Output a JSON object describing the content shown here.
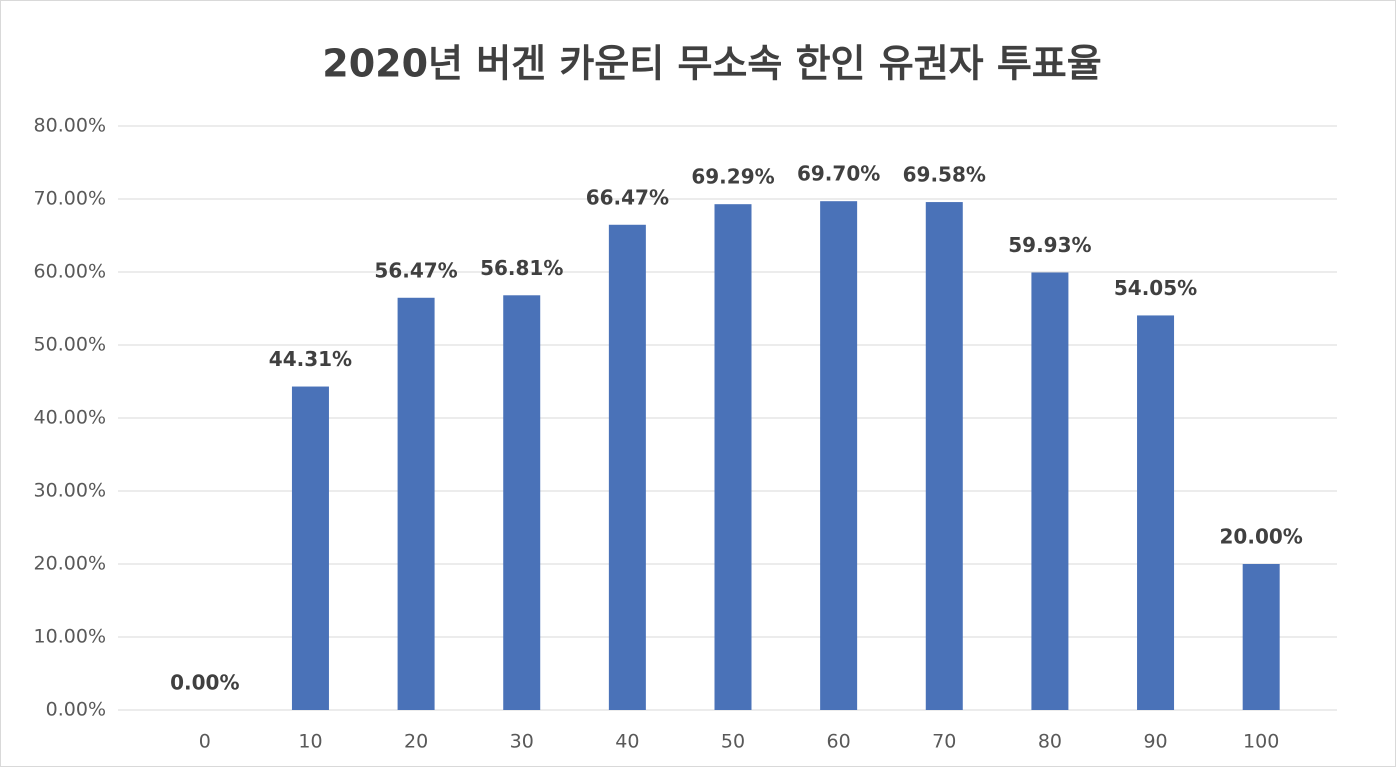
{
  "chart_data": {
    "type": "bar",
    "title": "2020년 버겐 카운티 무소속 한인 유권자 투표율",
    "categories": [
      "0",
      "10",
      "20",
      "30",
      "40",
      "50",
      "60",
      "70",
      "80",
      "90",
      "100"
    ],
    "values": [
      0,
      44.31,
      56.47,
      56.81,
      66.47,
      69.29,
      69.7,
      69.58,
      59.93,
      54.05,
      20.0
    ],
    "value_labels": [
      "0.00%",
      "44.31%",
      "56.47%",
      "56.81%",
      "66.47%",
      "69.29%",
      "69.70%",
      "69.58%",
      "59.93%",
      "54.05%",
      "20.00%"
    ],
    "color": "#4a72b8",
    "ylim": [
      0,
      80
    ],
    "yticks": [
      {
        "value": 0,
        "label": "0.00%"
      },
      {
        "value": 10,
        "label": "10.00%"
      },
      {
        "value": 20,
        "label": "20.00%"
      },
      {
        "value": 30,
        "label": "30.00%"
      },
      {
        "value": 40,
        "label": "40.00%"
      },
      {
        "value": 50,
        "label": "50.00%"
      },
      {
        "value": 60,
        "label": "60.00%"
      },
      {
        "value": 70,
        "label": "70.00%"
      },
      {
        "value": 80,
        "label": "80.00%"
      }
    ],
    "grid": true
  }
}
